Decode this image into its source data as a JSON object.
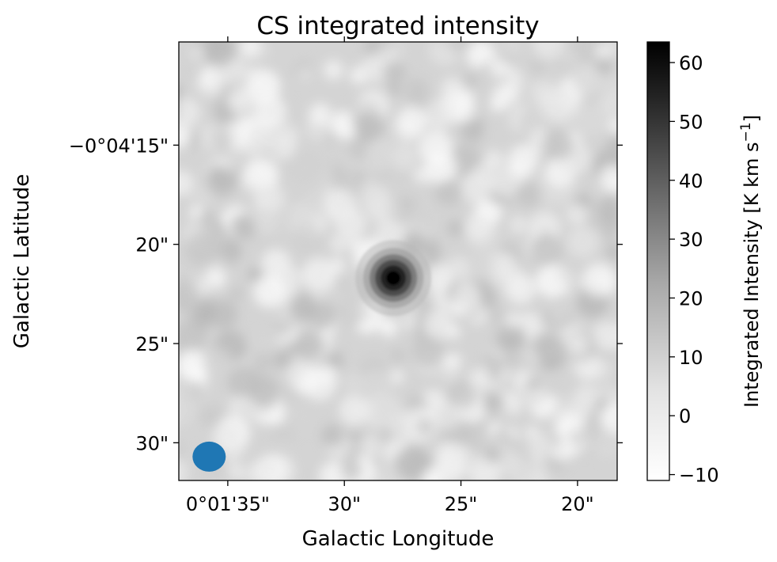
{
  "chart_data": {
    "type": "heatmap",
    "title": "CS integrated intensity",
    "xlabel": "Galactic Longitude",
    "ylabel": "Galactic Latitude",
    "x_ticks": [
      {
        "label": "0°01'35\"",
        "value_arcsec": 95
      },
      {
        "label": "30\"",
        "value_arcsec": 90
      },
      {
        "label": "25\"",
        "value_arcsec": 85
      },
      {
        "label": "20\"",
        "value_arcsec": 80
      }
    ],
    "y_ticks": [
      {
        "label": "−0°04'15\"",
        "value_arcsec": -255
      },
      {
        "label": "20\"",
        "value_arcsec": -260
      },
      {
        "label": "25\"",
        "value_arcsec": -265
      },
      {
        "label": "30\"",
        "value_arcsec": -270
      }
    ],
    "xlim_arcsec": [
      97.1,
      78.3
    ],
    "ylim_arcsec": [
      -249.8,
      -271.9
    ],
    "colorbar": {
      "label_main": "Integrated Intensity [K km s",
      "label_sup": "−1",
      "label_end": "]",
      "ticks": [
        "−10",
        "0",
        "10",
        "20",
        "30",
        "40",
        "50",
        "60"
      ],
      "tick_values": [
        -10,
        0,
        10,
        20,
        30,
        40,
        50,
        60
      ],
      "range": [
        -11,
        63.5
      ],
      "cmap": "Greys"
    },
    "peak": {
      "l_arcsec": 87.9,
      "b_arcsec": -261.7,
      "value": 63.5
    },
    "beam": {
      "l_arcsec": 95.8,
      "b_arcsec": -270.7,
      "color": "#1f77b4"
    }
  }
}
